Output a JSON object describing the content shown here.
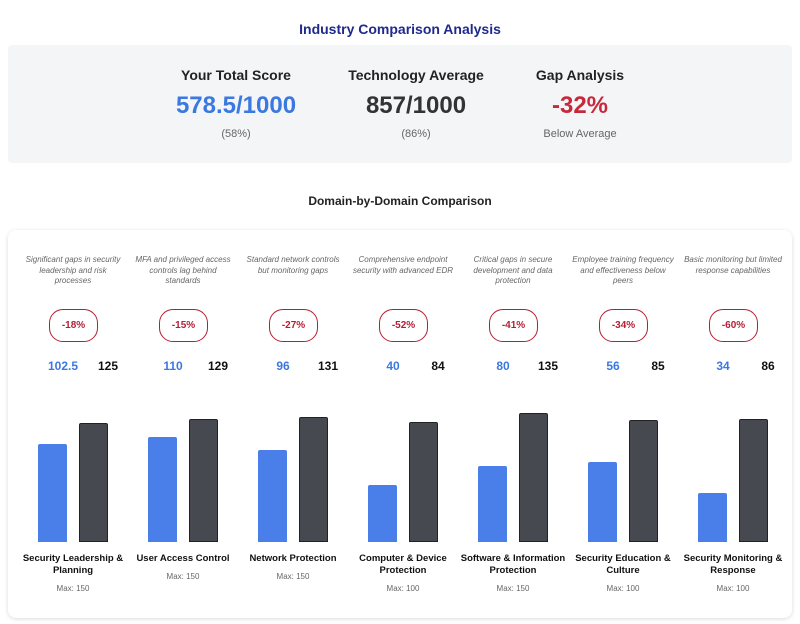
{
  "title": "Industry Comparison Analysis",
  "summary": {
    "your": {
      "label": "Your Total Score",
      "value": "578.5/1000",
      "sub": "(58%)",
      "color": "#3b78e0"
    },
    "avg": {
      "label": "Technology Average",
      "value": "857/1000",
      "sub": "(86%)",
      "color": "#333333"
    },
    "gap": {
      "label": "Gap Analysis",
      "value": "-32%",
      "sub": "Below Average",
      "color": "#c8283c"
    }
  },
  "chart_data": {
    "type": "bar",
    "title": "Domain-by-Domain Comparison",
    "categories": [
      "Security Leadership & Planning",
      "User Access Control",
      "Network Protection",
      "Computer & Device Protection",
      "Software & Information Protection",
      "Security Education & Culture",
      "Security Monitoring & Response"
    ],
    "max_labels": [
      "Max: 150",
      "Max: 150",
      "Max: 150",
      "Max: 100",
      "Max: 150",
      "Max: 100",
      "Max: 100"
    ],
    "max": [
      150,
      150,
      150,
      100,
      150,
      100,
      100
    ],
    "descriptions": [
      "Significant gaps in security leadership and risk processes",
      "MFA and privileged access controls lag behind standards",
      "Standard network controls but monitoring gaps",
      "Comprehensive endpoint security with advanced EDR",
      "Critical gaps in secure development and data protection",
      "Employee training frequency and effectiveness below peers",
      "Basic monitoring but limited response capabilities"
    ],
    "gaps": [
      "-18%",
      "-15%",
      "-27%",
      "-52%",
      "-41%",
      "-34%",
      "-60%"
    ],
    "series": [
      {
        "values": [
          102.5,
          110,
          96,
          40,
          80,
          56,
          34
        ],
        "color": "#4a7ee8"
      },
      {
        "values": [
          125,
          129,
          131,
          84,
          135,
          85,
          86
        ],
        "color": "#464a50"
      }
    ]
  }
}
